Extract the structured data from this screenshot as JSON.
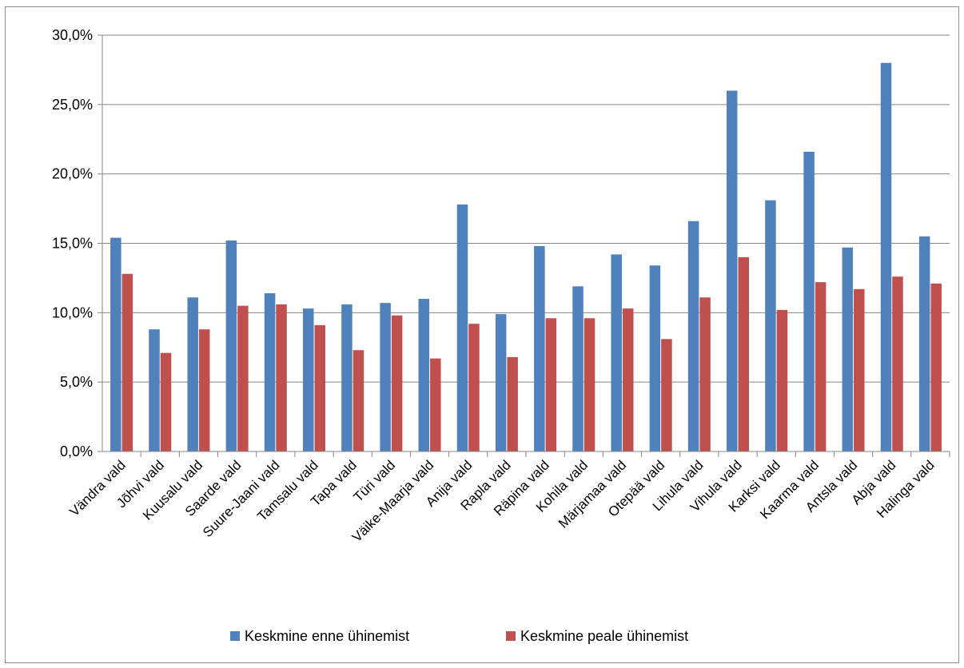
{
  "chart_data": {
    "type": "bar",
    "title": "",
    "xlabel": "",
    "ylabel": "",
    "ylim": [
      0,
      30
    ],
    "y_ticks": [
      "0,0%",
      "5,0%",
      "10,0%",
      "15,0%",
      "20,0%",
      "25,0%",
      "30,0%"
    ],
    "grid": true,
    "legend_position": "bottom",
    "categories": [
      "Vändra vald",
      "Jõhvi vald",
      "Kuusalu vald",
      "Saarde vald",
      "Suure-Jaani vald",
      "Tamsalu vald",
      "Tapa vald",
      "Türi vald",
      "Väike-Maarja vald",
      "Anija vald",
      "Rapla vald",
      "Räpina vald",
      "Kohila vald",
      "Märjamaa vald",
      "Otepää vald",
      "Lihula vald",
      "Vihula vald",
      "Karksi vald",
      "Kaarma vald",
      "Antsla vald",
      "Abja vald",
      "Halinga vald"
    ],
    "series": [
      {
        "name": "Keskmine enne ühinemist",
        "color": "#4f81bd",
        "values": [
          15.4,
          8.8,
          11.1,
          15.2,
          11.4,
          10.3,
          10.6,
          10.7,
          11.0,
          17.8,
          9.9,
          14.8,
          11.9,
          14.2,
          13.4,
          16.6,
          26.0,
          18.1,
          21.6,
          14.7,
          28.0,
          15.5
        ]
      },
      {
        "name": "Keskmine peale ühinemist",
        "color": "#c0504d",
        "values": [
          12.8,
          7.1,
          8.8,
          10.5,
          10.6,
          9.1,
          7.3,
          9.8,
          6.7,
          9.2,
          6.8,
          9.6,
          9.6,
          10.3,
          8.1,
          11.1,
          14.0,
          10.2,
          12.2,
          11.7,
          12.6,
          12.1
        ]
      }
    ]
  }
}
